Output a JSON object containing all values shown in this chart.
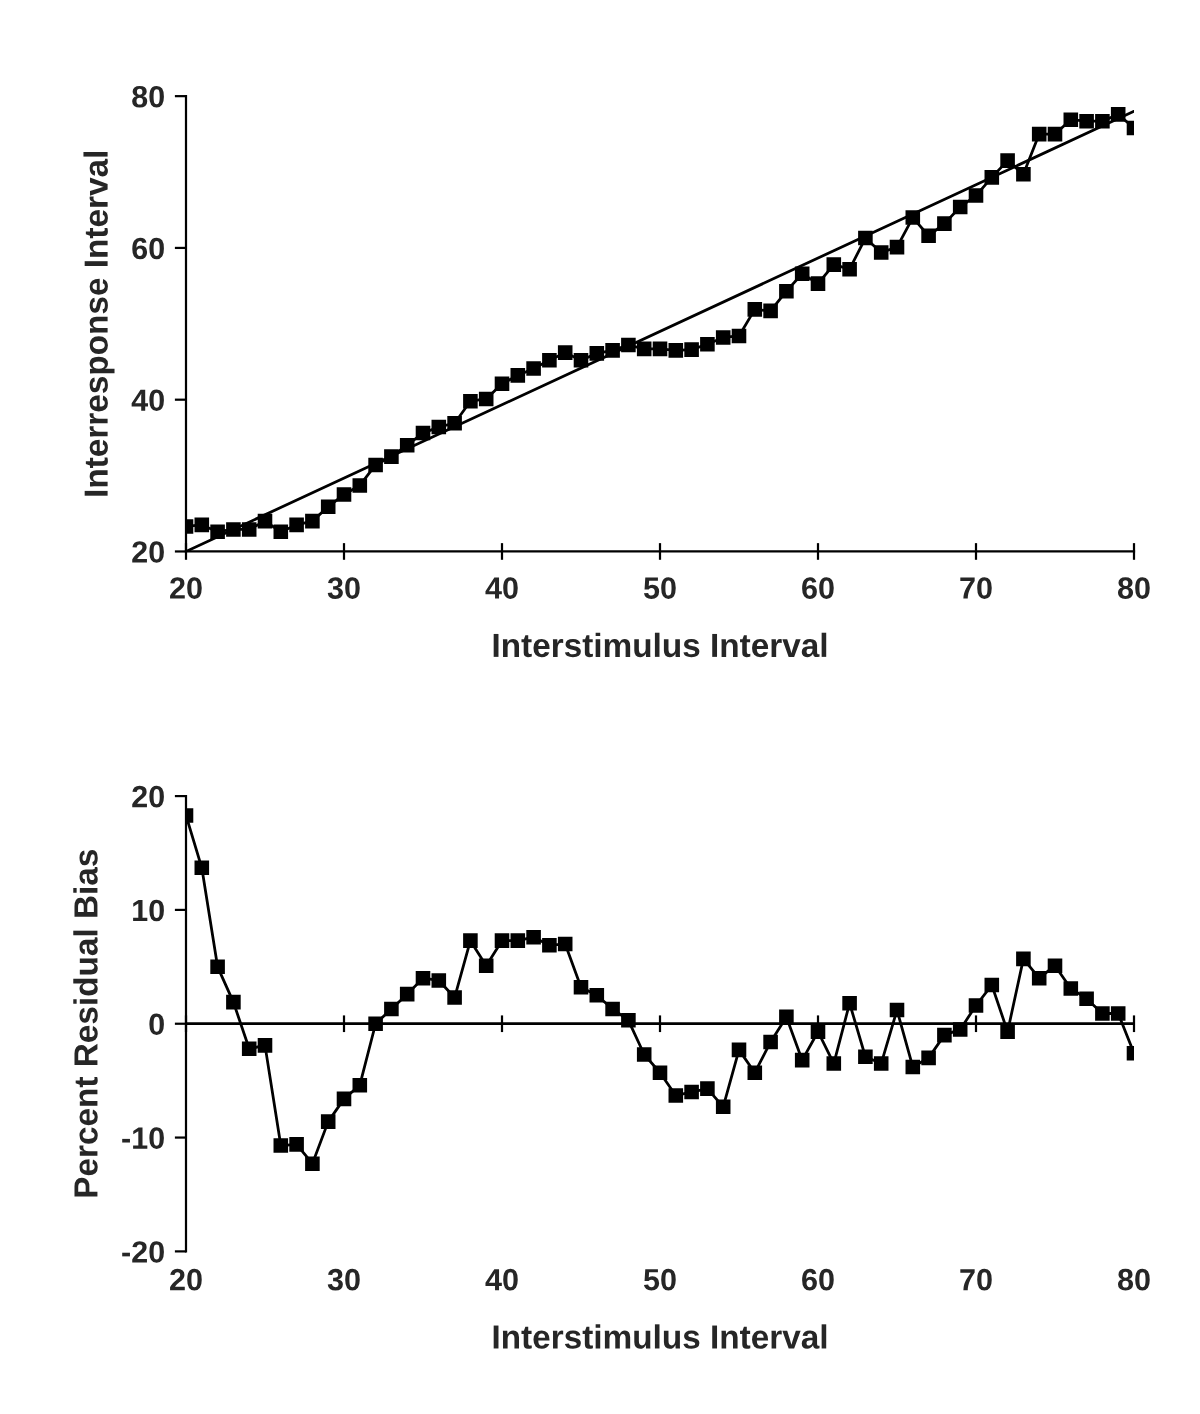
{
  "chart_data": [
    {
      "type": "line",
      "xlabel": "Interstimulus Interval",
      "ylabel": "Interresponse Interval",
      "line_style": "solid",
      "grid": false,
      "legend": false,
      "xlim": [
        20,
        80
      ],
      "ylim": [
        20,
        80
      ],
      "xticks": [
        20,
        30,
        40,
        50,
        60,
        70,
        80
      ],
      "yticks": [
        20,
        40,
        60,
        80
      ],
      "series": [
        {
          "color": "#000000",
          "marker": "square",
          "x": [
            20,
            21,
            22,
            23,
            24,
            25,
            26,
            27,
            28,
            29,
            30,
            31,
            32,
            33,
            34,
            35,
            36,
            37,
            38,
            39,
            40,
            41,
            42,
            43,
            44,
            45,
            46,
            47,
            48,
            49,
            50,
            51,
            52,
            53,
            54,
            55,
            56,
            57,
            58,
            59,
            60,
            61,
            62,
            63,
            64,
            65,
            66,
            67,
            68,
            69,
            70,
            71,
            72,
            73,
            74,
            75,
            76,
            77,
            78,
            79,
            80
          ],
          "values": [
            23.3,
            23.5,
            22.6,
            22.9,
            22.9,
            24.0,
            22.6,
            23.5,
            24.0,
            25.9,
            27.5,
            28.7,
            31.4,
            32.5,
            34.0,
            35.6,
            36.4,
            36.9,
            39.8,
            40.1,
            42.1,
            43.2,
            44.1,
            45.2,
            46.2,
            45.2,
            46.1,
            46.5,
            47.2,
            46.7,
            46.7,
            46.5,
            46.6,
            47.3,
            48.2,
            48.4,
            51.9,
            51.7,
            54.3,
            56.6,
            55.3,
            57.8,
            57.2,
            61.3,
            59.4,
            60.1,
            64.0,
            61.6,
            63.2,
            65.4,
            66.9,
            69.3,
            71.5,
            69.7,
            75.0,
            75.0,
            76.9,
            76.7,
            76.7,
            77.6,
            75.8
          ]
        },
        {
          "type": "line",
          "color": "#000000",
          "x": [
            20,
            80
          ],
          "values": [
            20,
            78
          ]
        }
      ]
    },
    {
      "type": "line",
      "xlabel": "Interstimulus Interval",
      "ylabel": "Percent Residual Bias",
      "marker": "square",
      "line_style": "solid",
      "grid": false,
      "legend": false,
      "xlim": [
        20,
        80
      ],
      "ylim": [
        -20,
        20
      ],
      "xticks": [
        20,
        30,
        40,
        50,
        60,
        70,
        80
      ],
      "yticks": [
        -20,
        -10,
        0,
        10,
        20
      ],
      "ref_lines": [
        {
          "axis": "y",
          "value": 0
        }
      ],
      "series": [
        {
          "color": "#000000",
          "x": [
            20,
            21,
            22,
            23,
            24,
            25,
            26,
            27,
            28,
            29,
            30,
            31,
            32,
            33,
            34,
            35,
            36,
            37,
            38,
            39,
            40,
            41,
            42,
            43,
            44,
            45,
            46,
            47,
            48,
            49,
            50,
            51,
            52,
            53,
            54,
            55,
            56,
            57,
            58,
            59,
            60,
            61,
            62,
            63,
            64,
            65,
            66,
            67,
            68,
            69,
            70,
            71,
            72,
            73,
            74,
            75,
            76,
            77,
            78,
            79,
            80
          ],
          "values": [
            18.3,
            13.7,
            5.0,
            1.9,
            -2.2,
            -1.9,
            -10.7,
            -10.6,
            -12.3,
            -8.6,
            -6.6,
            -5.4,
            0,
            1.3,
            2.6,
            4.0,
            3.8,
            2.3,
            7.3,
            5.1,
            7.3,
            7.3,
            7.6,
            6.9,
            7.0,
            3.2,
            2.5,
            1.3,
            0.3,
            -2.7,
            -4.3,
            -6.3,
            -6.0,
            -5.7,
            -7.3,
            -2.3,
            -4.3,
            -1.6,
            0.6,
            -3.2,
            -0.7,
            -3.5,
            1.8,
            -2.9,
            -3.5,
            1.2,
            -3.8,
            -3.0,
            -1.0,
            -0.5,
            1.6,
            3.4,
            -0.7,
            5.7,
            4.0,
            5.1,
            3.1,
            2.2,
            0.9,
            0.9,
            -2.6
          ]
        }
      ]
    }
  ]
}
